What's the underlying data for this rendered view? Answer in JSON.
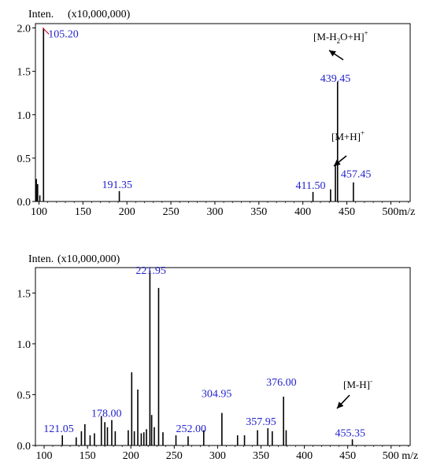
{
  "chart_data": [
    {
      "type": "bar",
      "subtype": "mass-spectrum",
      "y_title_prefix": "Inten.",
      "y_title_scale": "(x10,000,000)",
      "x_unit": "m/z",
      "xlim": [
        96,
        522
      ],
      "ylim": [
        0,
        2.05
      ],
      "x_ticks": [
        100,
        150,
        200,
        250,
        300,
        350,
        400,
        450
      ],
      "x_tick_last_label": "500m/z",
      "y_ticks": [
        "0.0",
        "0.5",
        "1.0",
        "1.5",
        "2.0"
      ],
      "peaks": [
        {
          "mz": 97,
          "intensity": 0.26
        },
        {
          "mz": 98.5,
          "intensity": 0.2
        },
        {
          "mz": 101,
          "intensity": 0.07
        },
        {
          "mz": 105.2,
          "intensity": 2.0,
          "label": "105.20"
        },
        {
          "mz": 191.35,
          "intensity": 0.12,
          "label": "191.35"
        },
        {
          "mz": 411.5,
          "intensity": 0.11,
          "label": "411.50"
        },
        {
          "mz": 431.5,
          "intensity": 0.14
        },
        {
          "mz": 437.0,
          "intensity": 0.43
        },
        {
          "mz": 439.45,
          "intensity": 1.38,
          "label": "439.45"
        },
        {
          "mz": 457.45,
          "intensity": 0.22,
          "label": "457.45"
        }
      ],
      "annotations": [
        {
          "text_main": "[M-H",
          "text_sub": "2",
          "text_tail": "O+H]",
          "text_sup": "+",
          "target_mz": 439.45
        },
        {
          "text_main": "[M+H]",
          "text_sub": "",
          "text_tail": "",
          "text_sup": "+",
          "target_mz": 457.45
        }
      ],
      "marker_color": "#d01030",
      "peak_label_color": "#2222cc"
    },
    {
      "type": "bar",
      "subtype": "mass-spectrum",
      "y_title_prefix": "Inten.",
      "y_title_scale": "(x10,000,000)",
      "x_unit": "m/z",
      "xlim": [
        90,
        522
      ],
      "ylim": [
        0,
        1.75
      ],
      "x_ticks": [
        100,
        150,
        200,
        250,
        300,
        350,
        400,
        450
      ],
      "x_tick_last_label": "500 m/z",
      "y_ticks": [
        "0.0",
        "0.5",
        "1.0",
        "1.5"
      ],
      "peaks": [
        {
          "mz": 121.05,
          "intensity": 0.1,
          "label": "121.05"
        },
        {
          "mz": 137,
          "intensity": 0.08
        },
        {
          "mz": 143,
          "intensity": 0.14
        },
        {
          "mz": 147,
          "intensity": 0.21
        },
        {
          "mz": 153,
          "intensity": 0.1
        },
        {
          "mz": 158,
          "intensity": 0.12
        },
        {
          "mz": 166,
          "intensity": 0.29
        },
        {
          "mz": 170,
          "intensity": 0.23
        },
        {
          "mz": 173,
          "intensity": 0.18
        },
        {
          "mz": 178.0,
          "intensity": 0.25,
          "label": "178.00"
        },
        {
          "mz": 182,
          "intensity": 0.14
        },
        {
          "mz": 197,
          "intensity": 0.15
        },
        {
          "mz": 201,
          "intensity": 0.72
        },
        {
          "mz": 204,
          "intensity": 0.14
        },
        {
          "mz": 208,
          "intensity": 0.55
        },
        {
          "mz": 212,
          "intensity": 0.12
        },
        {
          "mz": 215,
          "intensity": 0.13
        },
        {
          "mz": 218,
          "intensity": 0.16
        },
        {
          "mz": 221.95,
          "intensity": 1.72,
          "label": "221.95"
        },
        {
          "mz": 224,
          "intensity": 0.3
        },
        {
          "mz": 227,
          "intensity": 0.18
        },
        {
          "mz": 232,
          "intensity": 1.55
        },
        {
          "mz": 237,
          "intensity": 0.13
        },
        {
          "mz": 252.0,
          "intensity": 0.1,
          "label": "252.00"
        },
        {
          "mz": 266,
          "intensity": 0.09
        },
        {
          "mz": 284,
          "intensity": 0.15
        },
        {
          "mz": 304.95,
          "intensity": 0.32,
          "label": "304.95"
        },
        {
          "mz": 323,
          "intensity": 0.1
        },
        {
          "mz": 331,
          "intensity": 0.1
        },
        {
          "mz": 346,
          "intensity": 0.15
        },
        {
          "mz": 357.95,
          "intensity": 0.17,
          "label": "357.95"
        },
        {
          "mz": 363,
          "intensity": 0.14
        },
        {
          "mz": 376.0,
          "intensity": 0.48,
          "label": "376.00"
        },
        {
          "mz": 379,
          "intensity": 0.15
        },
        {
          "mz": 455.35,
          "intensity": 0.06,
          "label": "455.35"
        }
      ],
      "annotations": [
        {
          "text_main": "[M-H]",
          "text_sub": "",
          "text_tail": "",
          "text_sup": "-",
          "target_mz": 455.35
        }
      ],
      "peak_label_color": "#2222cc"
    }
  ]
}
